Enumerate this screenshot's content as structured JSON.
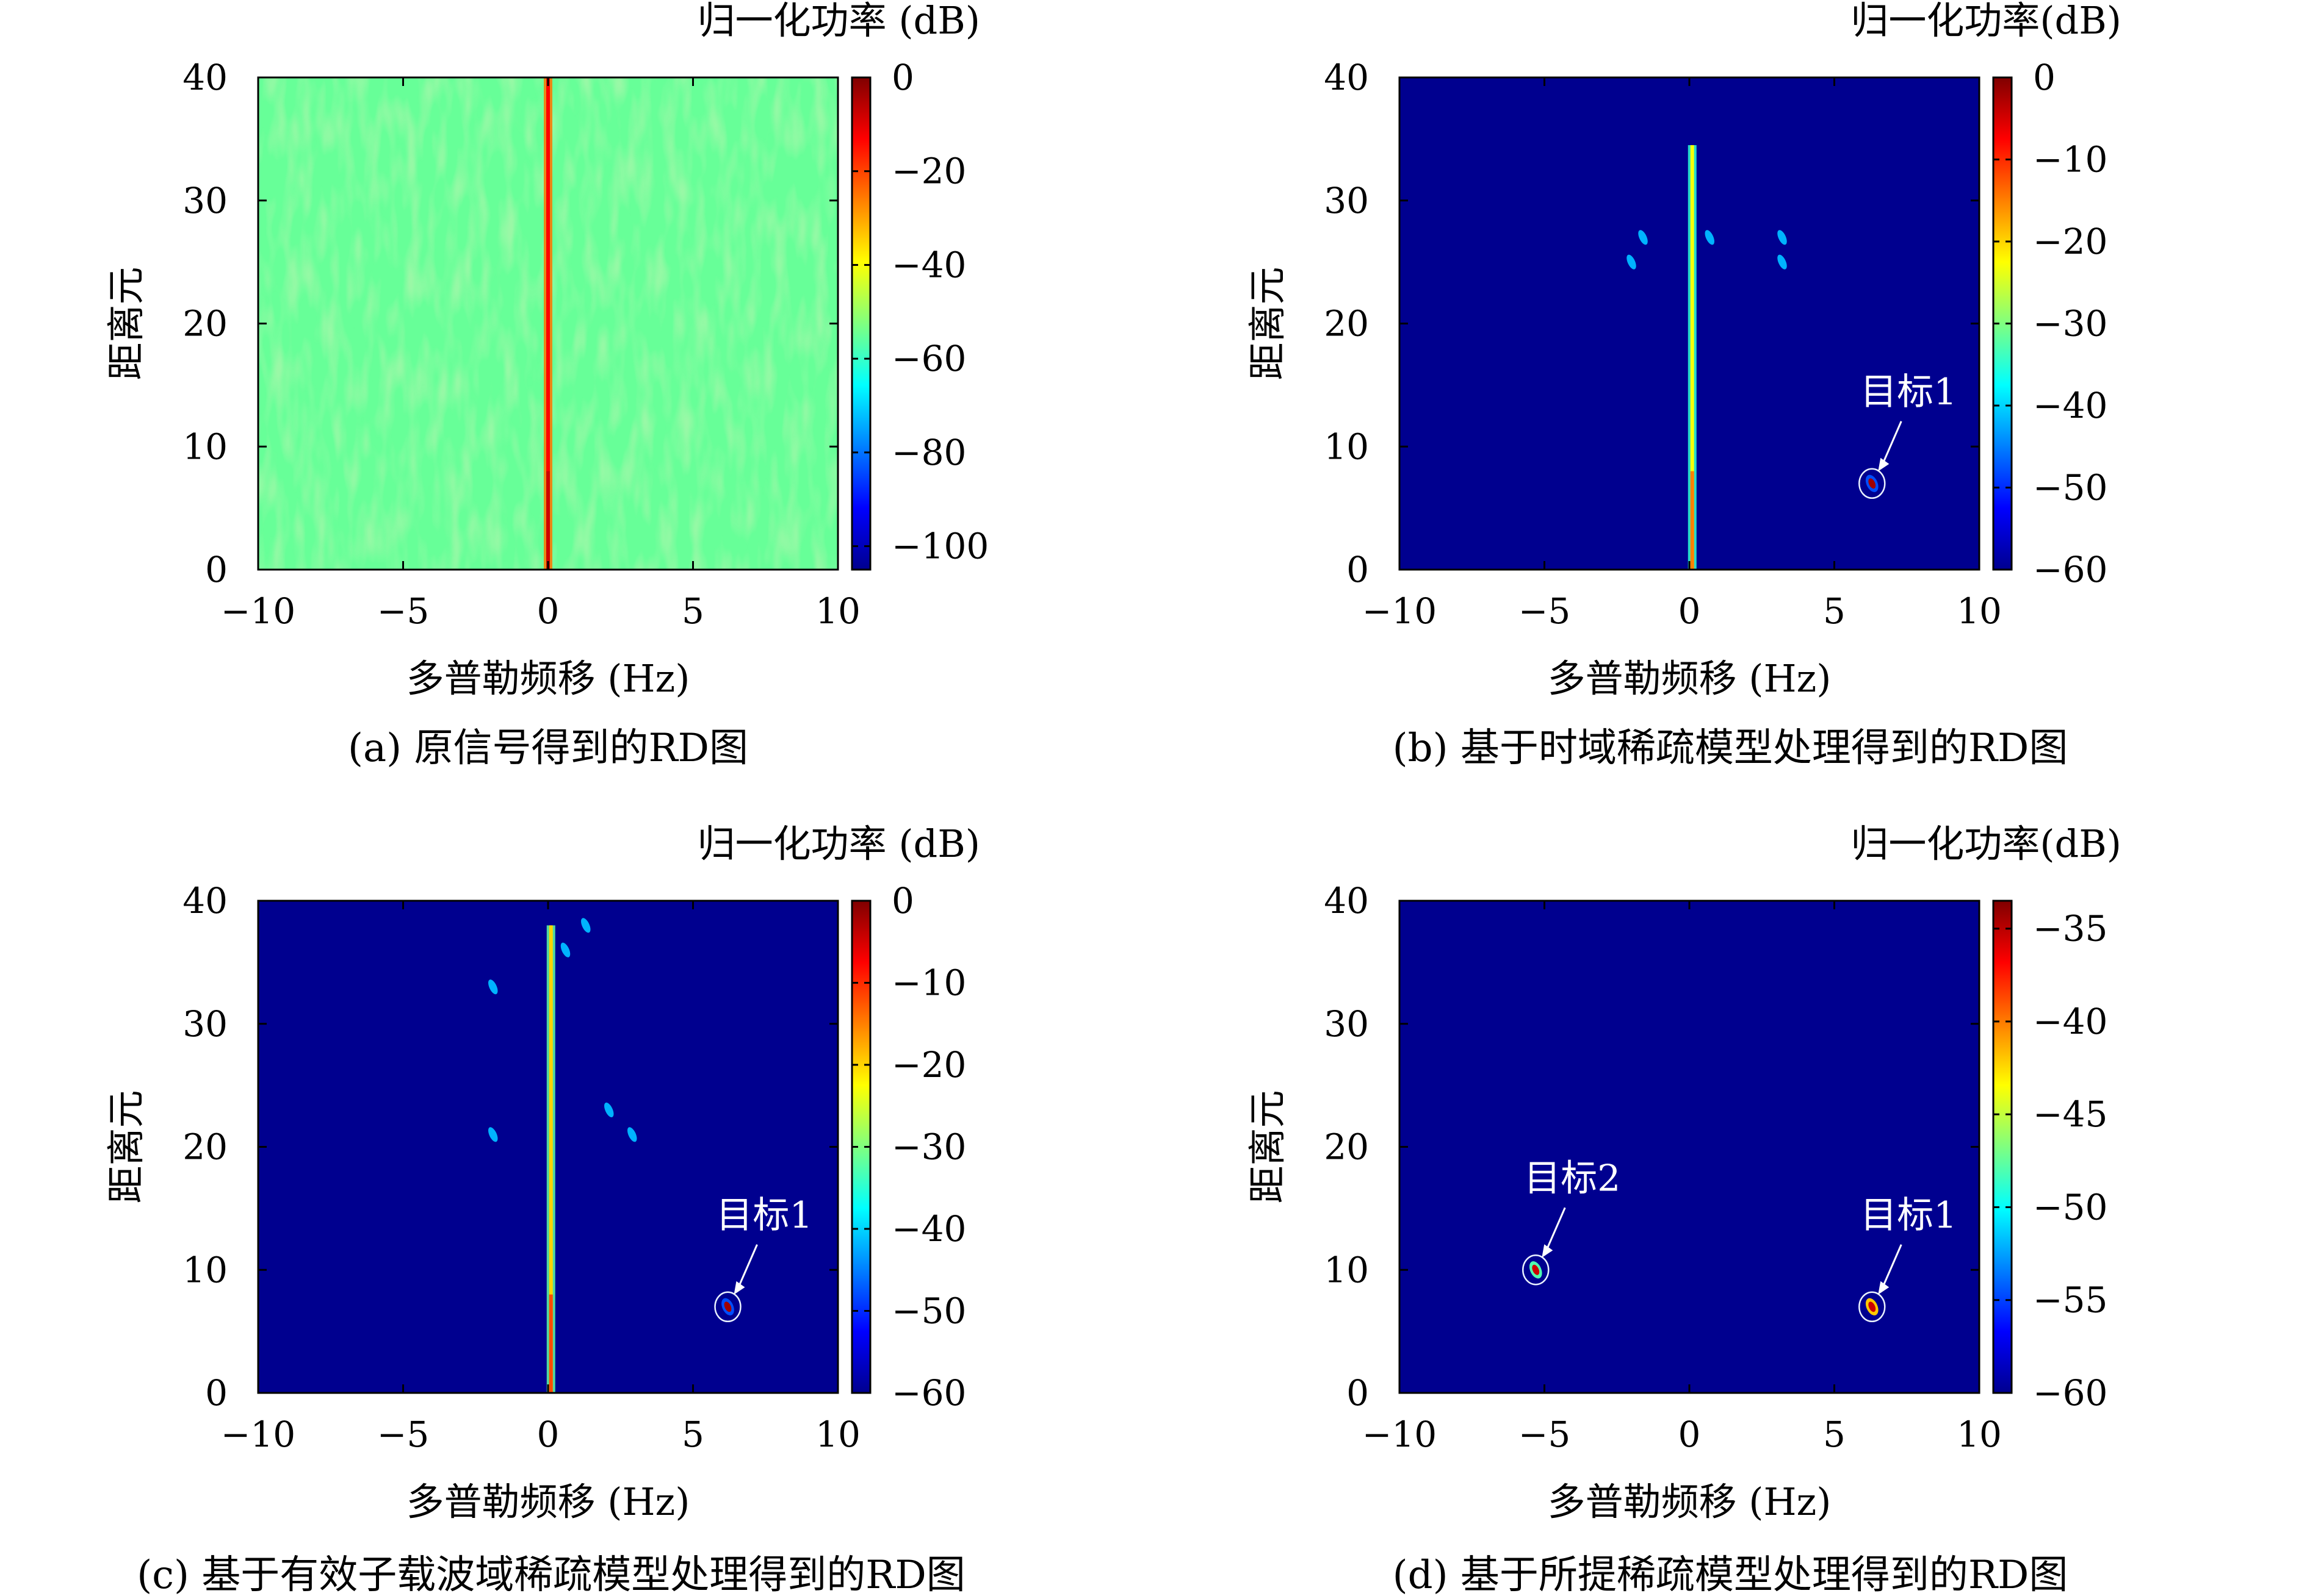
{
  "figure": {
    "xlabel": "多普勒频移 (Hz)",
    "ylabel": "距离元",
    "x_ticks": [
      "−10",
      "−5",
      "0",
      "5",
      "10"
    ],
    "y_ticks": [
      "0",
      "10",
      "20",
      "30",
      "40"
    ]
  },
  "chart_data": [
    {
      "type": "heatmap",
      "caption": "(a) 原信号得到的RD图",
      "xlabel": "多普勒频移 (Hz)",
      "ylabel": "距离元",
      "xlim": [
        -10,
        10
      ],
      "ylim": [
        0,
        40
      ],
      "colorbar_title": "归一化功率 (dB)",
      "colorbar_range": [
        -105,
        0
      ],
      "colorbar_ticks": [
        0,
        -20,
        -40,
        -60,
        -80,
        -100
      ],
      "colorbar_tick_labels": [
        "0",
        "−20",
        "−40",
        "−60",
        "−80",
        "−100"
      ],
      "colormap": "jet",
      "background_dB": -55,
      "features": [
        {
          "kind": "vertical_line",
          "x": 0,
          "y_range": [
            0,
            40
          ],
          "dB": -25
        }
      ],
      "annotations": []
    },
    {
      "type": "heatmap",
      "caption": "(b) 基于时域稀疏模型处理得到的RD图",
      "xlabel": "多普勒频移 (Hz)",
      "ylabel": "距离元",
      "xlim": [
        -10,
        10
      ],
      "ylim": [
        0,
        40
      ],
      "colorbar_title": "归一化功率(dB)",
      "colorbar_range": [
        -60,
        0
      ],
      "colorbar_ticks": [
        0,
        -10,
        -20,
        -30,
        -40,
        -50,
        -60
      ],
      "colorbar_tick_labels": [
        "0",
        "−10",
        "−20",
        "−30",
        "−40",
        "−50",
        "−60"
      ],
      "colormap": "jet",
      "background_dB": -60,
      "features": [
        {
          "kind": "vertical_line",
          "x": 0.1,
          "y_range": [
            0,
            34.5
          ],
          "dB": -35
        },
        {
          "kind": "spot",
          "x": -2.0,
          "y": 25.0,
          "dB": -42
        },
        {
          "kind": "spot",
          "x": -1.6,
          "y": 27.0,
          "dB": -42
        },
        {
          "kind": "spot",
          "x": 0.7,
          "y": 27.0,
          "dB": -42
        },
        {
          "kind": "spot",
          "x": 3.2,
          "y": 27.0,
          "dB": -42
        },
        {
          "kind": "spot",
          "x": 3.2,
          "y": 25.0,
          "dB": -42
        },
        {
          "kind": "target",
          "x": 6.3,
          "y": 7.0,
          "dB": -48
        }
      ],
      "annotations": [
        {
          "text": "目标1",
          "x": 6.3,
          "y": 7.0
        }
      ]
    },
    {
      "type": "heatmap",
      "caption": "(c) 基于有效子载波域稀疏模型处理得到的RD图",
      "xlabel": "多普勒频移 (Hz)",
      "ylabel": "距离元",
      "xlim": [
        -10,
        10
      ],
      "ylim": [
        0,
        40
      ],
      "colorbar_title": "归一化功率 (dB)",
      "colorbar_range": [
        -60,
        0
      ],
      "colorbar_ticks": [
        0,
        -10,
        -20,
        -30,
        -40,
        -50,
        -60
      ],
      "colorbar_tick_labels": [
        "0",
        "−10",
        "−20",
        "−30",
        "−40",
        "−50",
        "−60"
      ],
      "colormap": "jet",
      "background_dB": -60,
      "features": [
        {
          "kind": "vertical_line",
          "x": 0.1,
          "y_range": [
            0,
            38
          ],
          "dB": -32
        },
        {
          "kind": "spot",
          "x": -1.9,
          "y": 33.0,
          "dB": -42
        },
        {
          "kind": "spot",
          "x": -1.9,
          "y": 21.0,
          "dB": -42
        },
        {
          "kind": "spot",
          "x": 0.6,
          "y": 36.0,
          "dB": -42
        },
        {
          "kind": "spot",
          "x": 1.3,
          "y": 38.0,
          "dB": -42
        },
        {
          "kind": "spot",
          "x": 2.1,
          "y": 23.0,
          "dB": -42
        },
        {
          "kind": "spot",
          "x": 2.9,
          "y": 21.0,
          "dB": -42
        },
        {
          "kind": "target",
          "x": 6.2,
          "y": 7.0,
          "dB": -48
        }
      ],
      "annotations": [
        {
          "text": "目标1",
          "x": 6.2,
          "y": 7.0
        }
      ]
    },
    {
      "type": "heatmap",
      "caption": "(d) 基于所提稀疏模型处理得到的RD图",
      "xlabel": "多普勒频移 (Hz)",
      "ylabel": "距离元",
      "xlim": [
        -10,
        10
      ],
      "ylim": [
        0,
        40
      ],
      "colorbar_title": "归一化功率(dB)",
      "colorbar_range": [
        -60,
        -33.5
      ],
      "colorbar_ticks": [
        -35,
        -40,
        -45,
        -50,
        -55,
        -60
      ],
      "colorbar_tick_labels": [
        "−35",
        "−40",
        "−45",
        "−50",
        "−55",
        "−60"
      ],
      "colormap": "jet",
      "background_dB": -60,
      "features": [
        {
          "kind": "target",
          "x": -5.3,
          "y": 10.0,
          "dB": -48
        },
        {
          "kind": "target",
          "x": 6.3,
          "y": 7.0,
          "dB": -42
        }
      ],
      "annotations": [
        {
          "text": "目标2",
          "x": -5.3,
          "y": 10.0
        },
        {
          "text": "目标1",
          "x": 6.3,
          "y": 7.0
        }
      ]
    }
  ]
}
